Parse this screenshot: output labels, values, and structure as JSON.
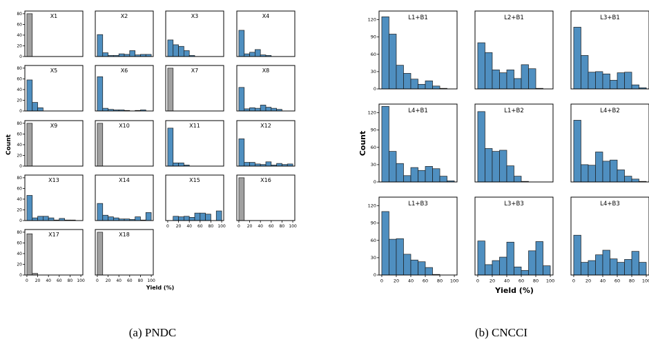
{
  "colors": {
    "blue": "#4f8fc0",
    "gray": "#a0a0a0",
    "edge": "#1a1a1a"
  },
  "figure_a": {
    "caption": "(a) PNDC",
    "ylabel": "Count",
    "xlabel": "Yield (%)",
    "ylim": [
      0,
      85
    ],
    "yticks": [
      0,
      20,
      40,
      60,
      80
    ],
    "xticks": [
      0,
      20,
      40,
      60,
      80,
      100
    ]
  },
  "figure_b": {
    "caption": "(b) CNCCI",
    "ylabel": "Count",
    "xlabel": "Yield (%)",
    "ylim": [
      0,
      135
    ],
    "yticks": [
      0,
      30,
      60,
      90,
      120
    ],
    "xticks": [
      0,
      20,
      40,
      60,
      80,
      100
    ]
  },
  "chart_data": [
    {
      "type": "bar",
      "panel": "a",
      "bin_edges": [
        0,
        10,
        20,
        30,
        40,
        50,
        60,
        70,
        80,
        90,
        100
      ],
      "subplots": [
        {
          "title": "X1",
          "color": "gray",
          "values": [
            80,
            0,
            0,
            0,
            0,
            0,
            0,
            0,
            0,
            0
          ]
        },
        {
          "title": "X2",
          "color": "blue",
          "values": [
            41,
            7,
            2,
            2,
            5,
            4,
            11,
            3,
            4,
            4
          ]
        },
        {
          "title": "X3",
          "color": "blue",
          "values": [
            31,
            22,
            19,
            11,
            2,
            0,
            0,
            0,
            0,
            0
          ]
        },
        {
          "title": "X4",
          "color": "blue",
          "values": [
            49,
            5,
            8,
            13,
            3,
            2,
            0,
            0,
            0,
            0
          ]
        },
        {
          "title": "X5",
          "color": "blue",
          "values": [
            58,
            16,
            6,
            0,
            0,
            0,
            0,
            0,
            0,
            0
          ]
        },
        {
          "title": "X6",
          "color": "blue",
          "values": [
            64,
            5,
            3,
            2,
            2,
            1,
            0,
            1,
            2,
            0
          ]
        },
        {
          "title": "X7",
          "color": "gray",
          "values": [
            80,
            0,
            0,
            0,
            0,
            0,
            0,
            0,
            0,
            0
          ]
        },
        {
          "title": "X8",
          "color": "blue",
          "values": [
            44,
            4,
            6,
            5,
            11,
            7,
            5,
            3,
            0,
            0
          ]
        },
        {
          "title": "X9",
          "color": "gray",
          "values": [
            80,
            0,
            0,
            0,
            0,
            0,
            0,
            0,
            0,
            0
          ]
        },
        {
          "title": "X10",
          "color": "gray",
          "values": [
            80,
            0,
            0,
            0,
            0,
            0,
            0,
            0,
            0,
            0
          ]
        },
        {
          "title": "X11",
          "color": "blue",
          "values": [
            71,
            6,
            6,
            2,
            0,
            0,
            0,
            0,
            0,
            0
          ]
        },
        {
          "title": "X12",
          "color": "blue",
          "values": [
            51,
            7,
            7,
            4,
            3,
            8,
            2,
            5,
            3,
            4
          ]
        },
        {
          "title": "X13",
          "color": "blue",
          "values": [
            47,
            5,
            8,
            8,
            5,
            1,
            4,
            1,
            1,
            0
          ]
        },
        {
          "title": "X14",
          "color": "blue",
          "values": [
            32,
            10,
            7,
            5,
            3,
            3,
            2,
            7,
            1,
            15
          ]
        },
        {
          "title": "X15",
          "color": "blue",
          "values": [
            0,
            8,
            7,
            8,
            6,
            14,
            14,
            12,
            0,
            18
          ]
        },
        {
          "title": "X16",
          "color": "gray",
          "values": [
            80,
            0,
            0,
            0,
            0,
            0,
            0,
            0,
            0,
            0
          ]
        },
        {
          "title": "X17",
          "color": "gray",
          "values": [
            77,
            3,
            0,
            0,
            0,
            0,
            0,
            0,
            0,
            0
          ]
        },
        {
          "title": "X18",
          "color": "gray",
          "values": [
            80,
            0,
            0,
            0,
            0,
            0,
            0,
            0,
            0,
            0
          ]
        }
      ]
    },
    {
      "type": "bar",
      "panel": "b",
      "bin_edges": [
        0,
        10,
        20,
        30,
        40,
        50,
        60,
        70,
        80,
        90,
        100
      ],
      "subplots": [
        {
          "title": "L1+B1",
          "values": [
            125,
            95,
            41,
            27,
            17,
            8,
            14,
            5,
            1,
            0
          ]
        },
        {
          "title": "L2+B1",
          "values": [
            80,
            63,
            33,
            28,
            33,
            18,
            42,
            35,
            1,
            0
          ]
        },
        {
          "title": "L3+B1",
          "values": [
            107,
            58,
            29,
            30,
            26,
            15,
            28,
            29,
            7,
            2
          ]
        },
        {
          "title": "L4+B1",
          "values": [
            131,
            53,
            32,
            11,
            25,
            20,
            27,
            23,
            10,
            2
          ]
        },
        {
          "title": "L1+B2",
          "values": [
            122,
            58,
            53,
            55,
            28,
            10,
            1,
            0,
            0,
            0
          ]
        },
        {
          "title": "L4+B2",
          "values": [
            107,
            30,
            29,
            52,
            36,
            38,
            21,
            10,
            5,
            1
          ]
        },
        {
          "title": "L1+B3",
          "values": [
            110,
            62,
            63,
            36,
            26,
            23,
            13,
            1,
            0,
            0
          ]
        },
        {
          "title": "L3+B3",
          "values": [
            59,
            18,
            25,
            31,
            57,
            14,
            8,
            42,
            58,
            16
          ]
        },
        {
          "title": "L4+B3",
          "values": [
            69,
            22,
            25,
            35,
            43,
            28,
            22,
            27,
            41,
            22
          ]
        }
      ]
    }
  ]
}
